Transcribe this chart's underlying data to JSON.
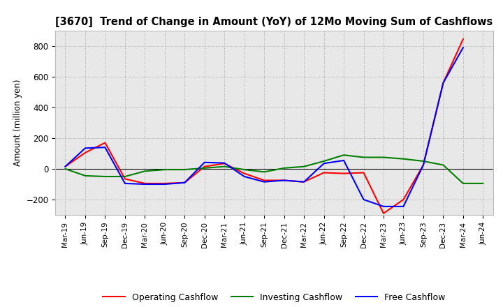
{
  "title": "[3670]  Trend of Change in Amount (YoY) of 12Mo Moving Sum of Cashflows",
  "ylabel": "Amount (million yen)",
  "xlabels": [
    "Mar-19",
    "Jun-19",
    "Sep-19",
    "Dec-19",
    "Mar-20",
    "Jun-20",
    "Sep-20",
    "Dec-20",
    "Mar-21",
    "Jun-21",
    "Sep-21",
    "Dec-21",
    "Mar-22",
    "Jun-22",
    "Sep-22",
    "Dec-22",
    "Mar-23",
    "Jun-23",
    "Sep-23",
    "Dec-23",
    "Mar-24",
    "Jun-24"
  ],
  "operating_cashflow": [
    15,
    105,
    170,
    -65,
    -95,
    -95,
    -90,
    15,
    35,
    -30,
    -75,
    -75,
    -85,
    -25,
    -30,
    -25,
    -290,
    -200,
    25,
    560,
    845,
    null
  ],
  "investing_cashflow": [
    0,
    -45,
    -50,
    -50,
    -15,
    -5,
    -5,
    5,
    15,
    -5,
    -20,
    5,
    15,
    50,
    90,
    75,
    75,
    65,
    50,
    25,
    -95,
    -95
  ],
  "free_cashflow": [
    15,
    135,
    140,
    -95,
    -100,
    -100,
    -90,
    42,
    38,
    -50,
    -85,
    -75,
    -85,
    35,
    55,
    -200,
    -245,
    -245,
    25,
    560,
    790,
    null
  ],
  "ylim": [
    -300,
    900
  ],
  "yticks": [
    -200,
    0,
    200,
    400,
    600,
    800
  ],
  "operating_color": "#ff0000",
  "investing_color": "#008000",
  "free_color": "#0000ff",
  "background_color": "#ffffff",
  "plot_bg_color": "#e8e8e8",
  "grid_color": "#999999",
  "linewidth": 1.5
}
